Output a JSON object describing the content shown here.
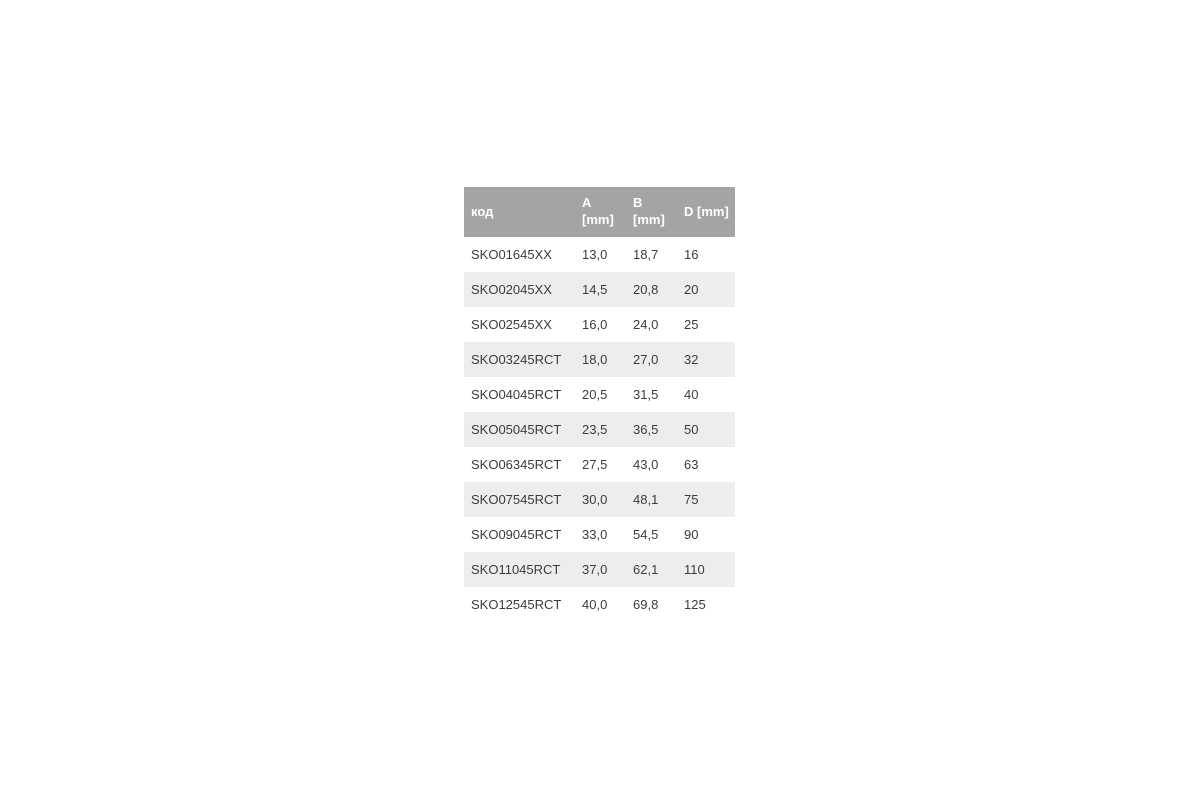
{
  "colors": {
    "header_bg": "#a4a4a4",
    "header_text": "#ffffff",
    "stripe_bg": "#ededed",
    "body_text": "#3c3c3c"
  },
  "chart_data": {
    "type": "table",
    "columns": [
      {
        "key": "code",
        "label": "код"
      },
      {
        "key": "a",
        "label": "A [mm]"
      },
      {
        "key": "b",
        "label": "B [mm]"
      },
      {
        "key": "d",
        "label": "D [mm]"
      }
    ],
    "rows": [
      {
        "code": "SKO01645XX",
        "a": "13,0",
        "b": "18,7",
        "d": "16"
      },
      {
        "code": "SKO02045XX",
        "a": "14,5",
        "b": "20,8",
        "d": "20"
      },
      {
        "code": "SKO02545XX",
        "a": "16,0",
        "b": "24,0",
        "d": "25"
      },
      {
        "code": "SKO03245RCT",
        "a": "18,0",
        "b": "27,0",
        "d": "32"
      },
      {
        "code": "SKO04045RCT",
        "a": "20,5",
        "b": "31,5",
        "d": "40"
      },
      {
        "code": "SKO05045RCT",
        "a": "23,5",
        "b": "36,5",
        "d": "50"
      },
      {
        "code": "SKO06345RCT",
        "a": "27,5",
        "b": "43,0",
        "d": "63"
      },
      {
        "code": "SKO07545RCT",
        "a": "30,0",
        "b": "48,1",
        "d": "75"
      },
      {
        "code": "SKO09045RCT",
        "a": "33,0",
        "b": "54,5",
        "d": "90"
      },
      {
        "code": "SKO11045RCT",
        "a": "37,0",
        "b": "62,1",
        "d": "110"
      },
      {
        "code": "SKO12545RCT",
        "a": "40,0",
        "b": "69,8",
        "d": "125"
      }
    ]
  }
}
